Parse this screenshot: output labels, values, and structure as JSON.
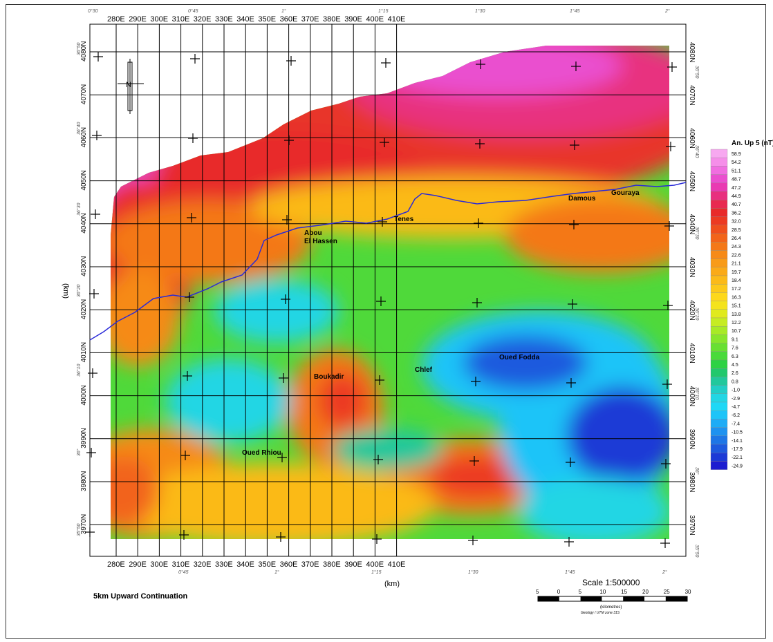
{
  "map": {
    "title": "5km Upward Continuation",
    "axis_unit_bottom": "(km)",
    "axis_unit_left": "(km)",
    "x_ticks": [
      "280E",
      "290E",
      "300E",
      "310E",
      "320E",
      "330E",
      "340E",
      "350E",
      "360E",
      "370E",
      "380E",
      "390E",
      "400E",
      "410E"
    ],
    "y_ticks": [
      "4080N",
      "4070N",
      "4060N",
      "4050N",
      "4040N",
      "4030N",
      "4020N",
      "4010N",
      "4000N",
      "3990N",
      "3980N",
      "3970N"
    ],
    "geo_top": [
      "0°30",
      "0°45",
      "1°",
      "1°15",
      "1°30",
      "1°45",
      "2°"
    ],
    "geo_bottom": [
      "0°45",
      "1°",
      "1°15",
      "1°30",
      "1°45",
      "2°"
    ],
    "geo_left": [
      "36°50",
      "36°40",
      "36°30",
      "36°20",
      "36°10",
      "36°",
      "35°50"
    ],
    "geo_right": [
      "36°50",
      "36°40",
      "36°30",
      "36°20",
      "36°10",
      "36°",
      "35°50"
    ],
    "north_label": "N",
    "places": [
      {
        "name": "Damous"
      },
      {
        "name": "Gouraya"
      },
      {
        "name": "Tenes"
      },
      {
        "name": "Abou"
      },
      {
        "name": "El Hassen"
      },
      {
        "name": "Oued Fodda"
      },
      {
        "name": "Chlef"
      },
      {
        "name": "Boukadir"
      },
      {
        "name": "Oued Rhiou"
      }
    ]
  },
  "legend": {
    "title": "An. Up 5 (nT)",
    "values": [
      "58.9",
      "54.2",
      "51.1",
      "48.7",
      "47.2",
      "44.9",
      "40.7",
      "36.2",
      "32.0",
      "28.5",
      "26.4",
      "24.3",
      "22.6",
      "21.1",
      "19.7",
      "18.4",
      "17.2",
      "16.3",
      "15.1",
      "13.8",
      "12.2",
      "10.7",
      "9.1",
      "7.6",
      "6.3",
      "4.5",
      "2.6",
      "0.8",
      "-1.0",
      "-2.9",
      "-4.7",
      "-6.2",
      "-7.4",
      "-10.5",
      "-14.1",
      "-17.9",
      "-22.1",
      "-24.9"
    ],
    "colors": [
      "#f7a8f0",
      "#f58ee9",
      "#f06ee0",
      "#ea4fcf",
      "#e93ab2",
      "#e8307f",
      "#e82a50",
      "#e82a2a",
      "#ec3a22",
      "#ef4f1d",
      "#f2641a",
      "#f47818",
      "#f68a18",
      "#f89b18",
      "#faaa18",
      "#fbba19",
      "#fcc91a",
      "#fdd81b",
      "#f4e31c",
      "#e0ea1d",
      "#c6ec22",
      "#a8ea26",
      "#88e62c",
      "#68e032",
      "#49da3a",
      "#2dd244",
      "#22c86c",
      "#22c89c",
      "#22cec6",
      "#22d6e4",
      "#1ed8f6",
      "#1ec4f8",
      "#1eacf6",
      "#1e92f0",
      "#1e76e6",
      "#1e5ade",
      "#1c3ad6",
      "#1c1cd0"
    ]
  },
  "scale": {
    "title": "Scale 1:500000",
    "ticks": [
      "5",
      "0",
      "5",
      "10",
      "15",
      "20",
      "25",
      "30"
    ],
    "unit": "(kilometres)",
    "caption": "Geology / UTM zone 31S"
  },
  "chart_data": {
    "type": "heatmap",
    "title": "5km Upward Continuation",
    "xlabel": "(km)",
    "ylabel": "(km)",
    "xlim": [
      275,
      415
    ],
    "ylim": [
      3967,
      4085
    ],
    "colorbar": {
      "label": "An. Up 5 (nT)",
      "min": -24.9,
      "max": 58.9
    },
    "highs": [
      {
        "x": 372,
        "y": 4072,
        "level": "58.9"
      },
      {
        "x": 334,
        "y": 4000,
        "level": "24.3"
      },
      {
        "x": 362,
        "y": 3982,
        "level": "26.4"
      },
      {
        "x": 284,
        "y": 3978,
        "level": "24.3"
      }
    ],
    "lows": [
      {
        "x": 375,
        "y": 4007,
        "level": "-22.1"
      },
      {
        "x": 405,
        "y": 3990,
        "level": "-24.9"
      },
      {
        "x": 322,
        "y": 4020,
        "level": "-7.4"
      },
      {
        "x": 315,
        "y": 4003,
        "level": "-10.5"
      }
    ]
  }
}
